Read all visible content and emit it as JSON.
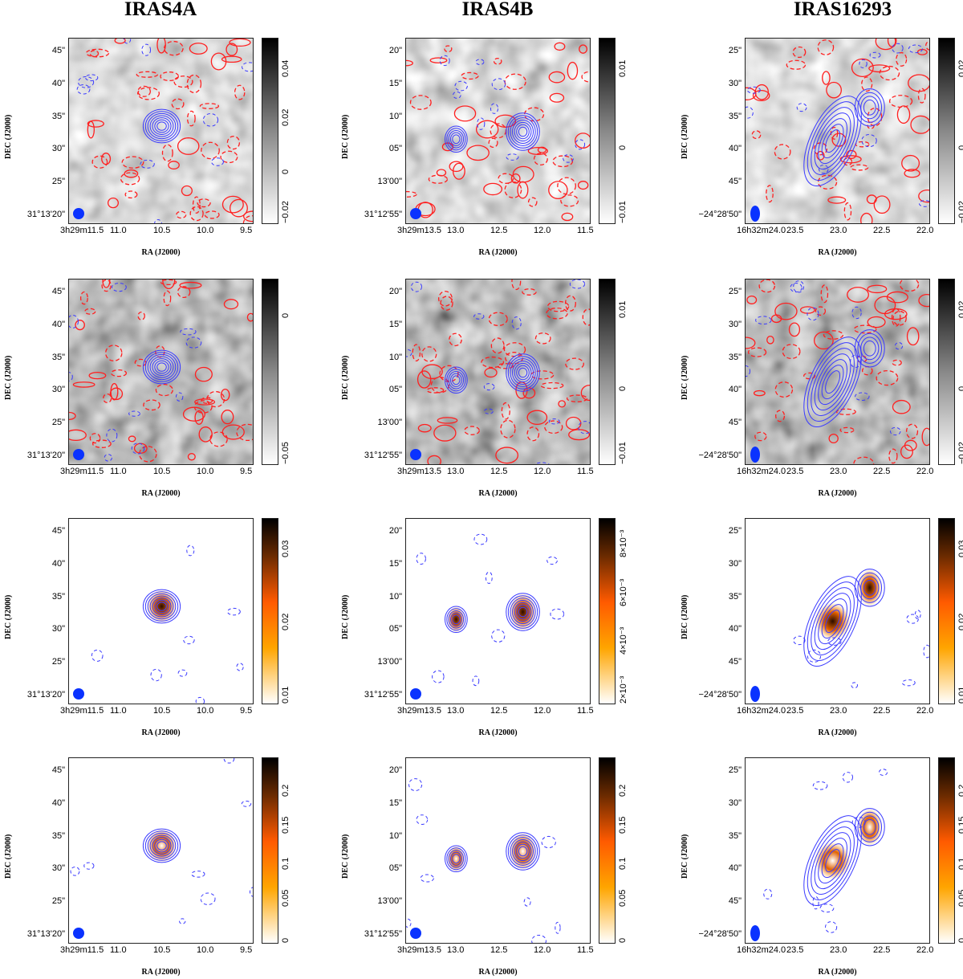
{
  "chart_data": {
    "type": "heatmap",
    "columns": [
      {
        "title": "IRAS4A",
        "dec_ticks": [
          "45\"",
          "40\"",
          "35\"",
          "30\"",
          "25\"",
          "31°13'20\""
        ],
        "ra_ticks": [
          "3h29m11.5",
          "11.0",
          "10.5",
          "10.0",
          "9.5"
        ]
      },
      {
        "title": "IRAS4B",
        "dec_ticks": [
          "20\"",
          "15\"",
          "10\"",
          "05\"",
          "13'00\"",
          "31°12'55\""
        ],
        "ra_ticks": [
          "3h29m13.5",
          "13.0",
          "12.5",
          "12.0",
          "11.5"
        ]
      },
      {
        "title": "IRAS16293",
        "dec_ticks": [
          "25\"",
          "30\"",
          "35\"",
          "40\"",
          "45\"",
          "−24°28'50\""
        ],
        "ra_ticks": [
          "16h32m24.0",
          "23.5",
          "23.0",
          "22.5",
          "22.0"
        ]
      }
    ],
    "xlabel": "RA (J2000)",
    "ylabel": "DEC (J2000)",
    "rows": [
      {
        "colormap": "gray",
        "colorbar_ticks": [
          [
            "0.04",
            "0.02",
            "0",
            "−0.02"
          ],
          [
            "0.01",
            "0",
            "−0.01"
          ],
          [
            "0.02",
            "0",
            "−0.02"
          ]
        ]
      },
      {
        "colormap": "gray",
        "colorbar_ticks": [
          [
            "0",
            "−0.05"
          ],
          [
            "0.01",
            "0",
            "−0.01"
          ],
          [
            "0.02",
            "0",
            "−0.02"
          ]
        ]
      },
      {
        "colormap": "orange",
        "colorbar_ticks": [
          [
            "0.03",
            "0.02",
            "0.01"
          ],
          [
            "8×10⁻³",
            "6×10⁻³",
            "4×10⁻³",
            "2×10⁻³"
          ],
          [
            "0.03",
            "0.02",
            "0.01"
          ]
        ]
      },
      {
        "colormap": "orange",
        "colorbar_ticks": [
          [
            "0.2",
            "0.15",
            "0.1",
            "0.05",
            "0"
          ],
          [
            "0.2",
            "0.15",
            "0.1",
            "0.05",
            "0"
          ],
          [
            "0.2",
            "0.15",
            "0.1",
            "0.05",
            "0"
          ]
        ]
      }
    ],
    "colors": {
      "contour_blue": "#3b3bff",
      "contour_red": "#ff2020",
      "beam": "#0a32ff"
    }
  }
}
